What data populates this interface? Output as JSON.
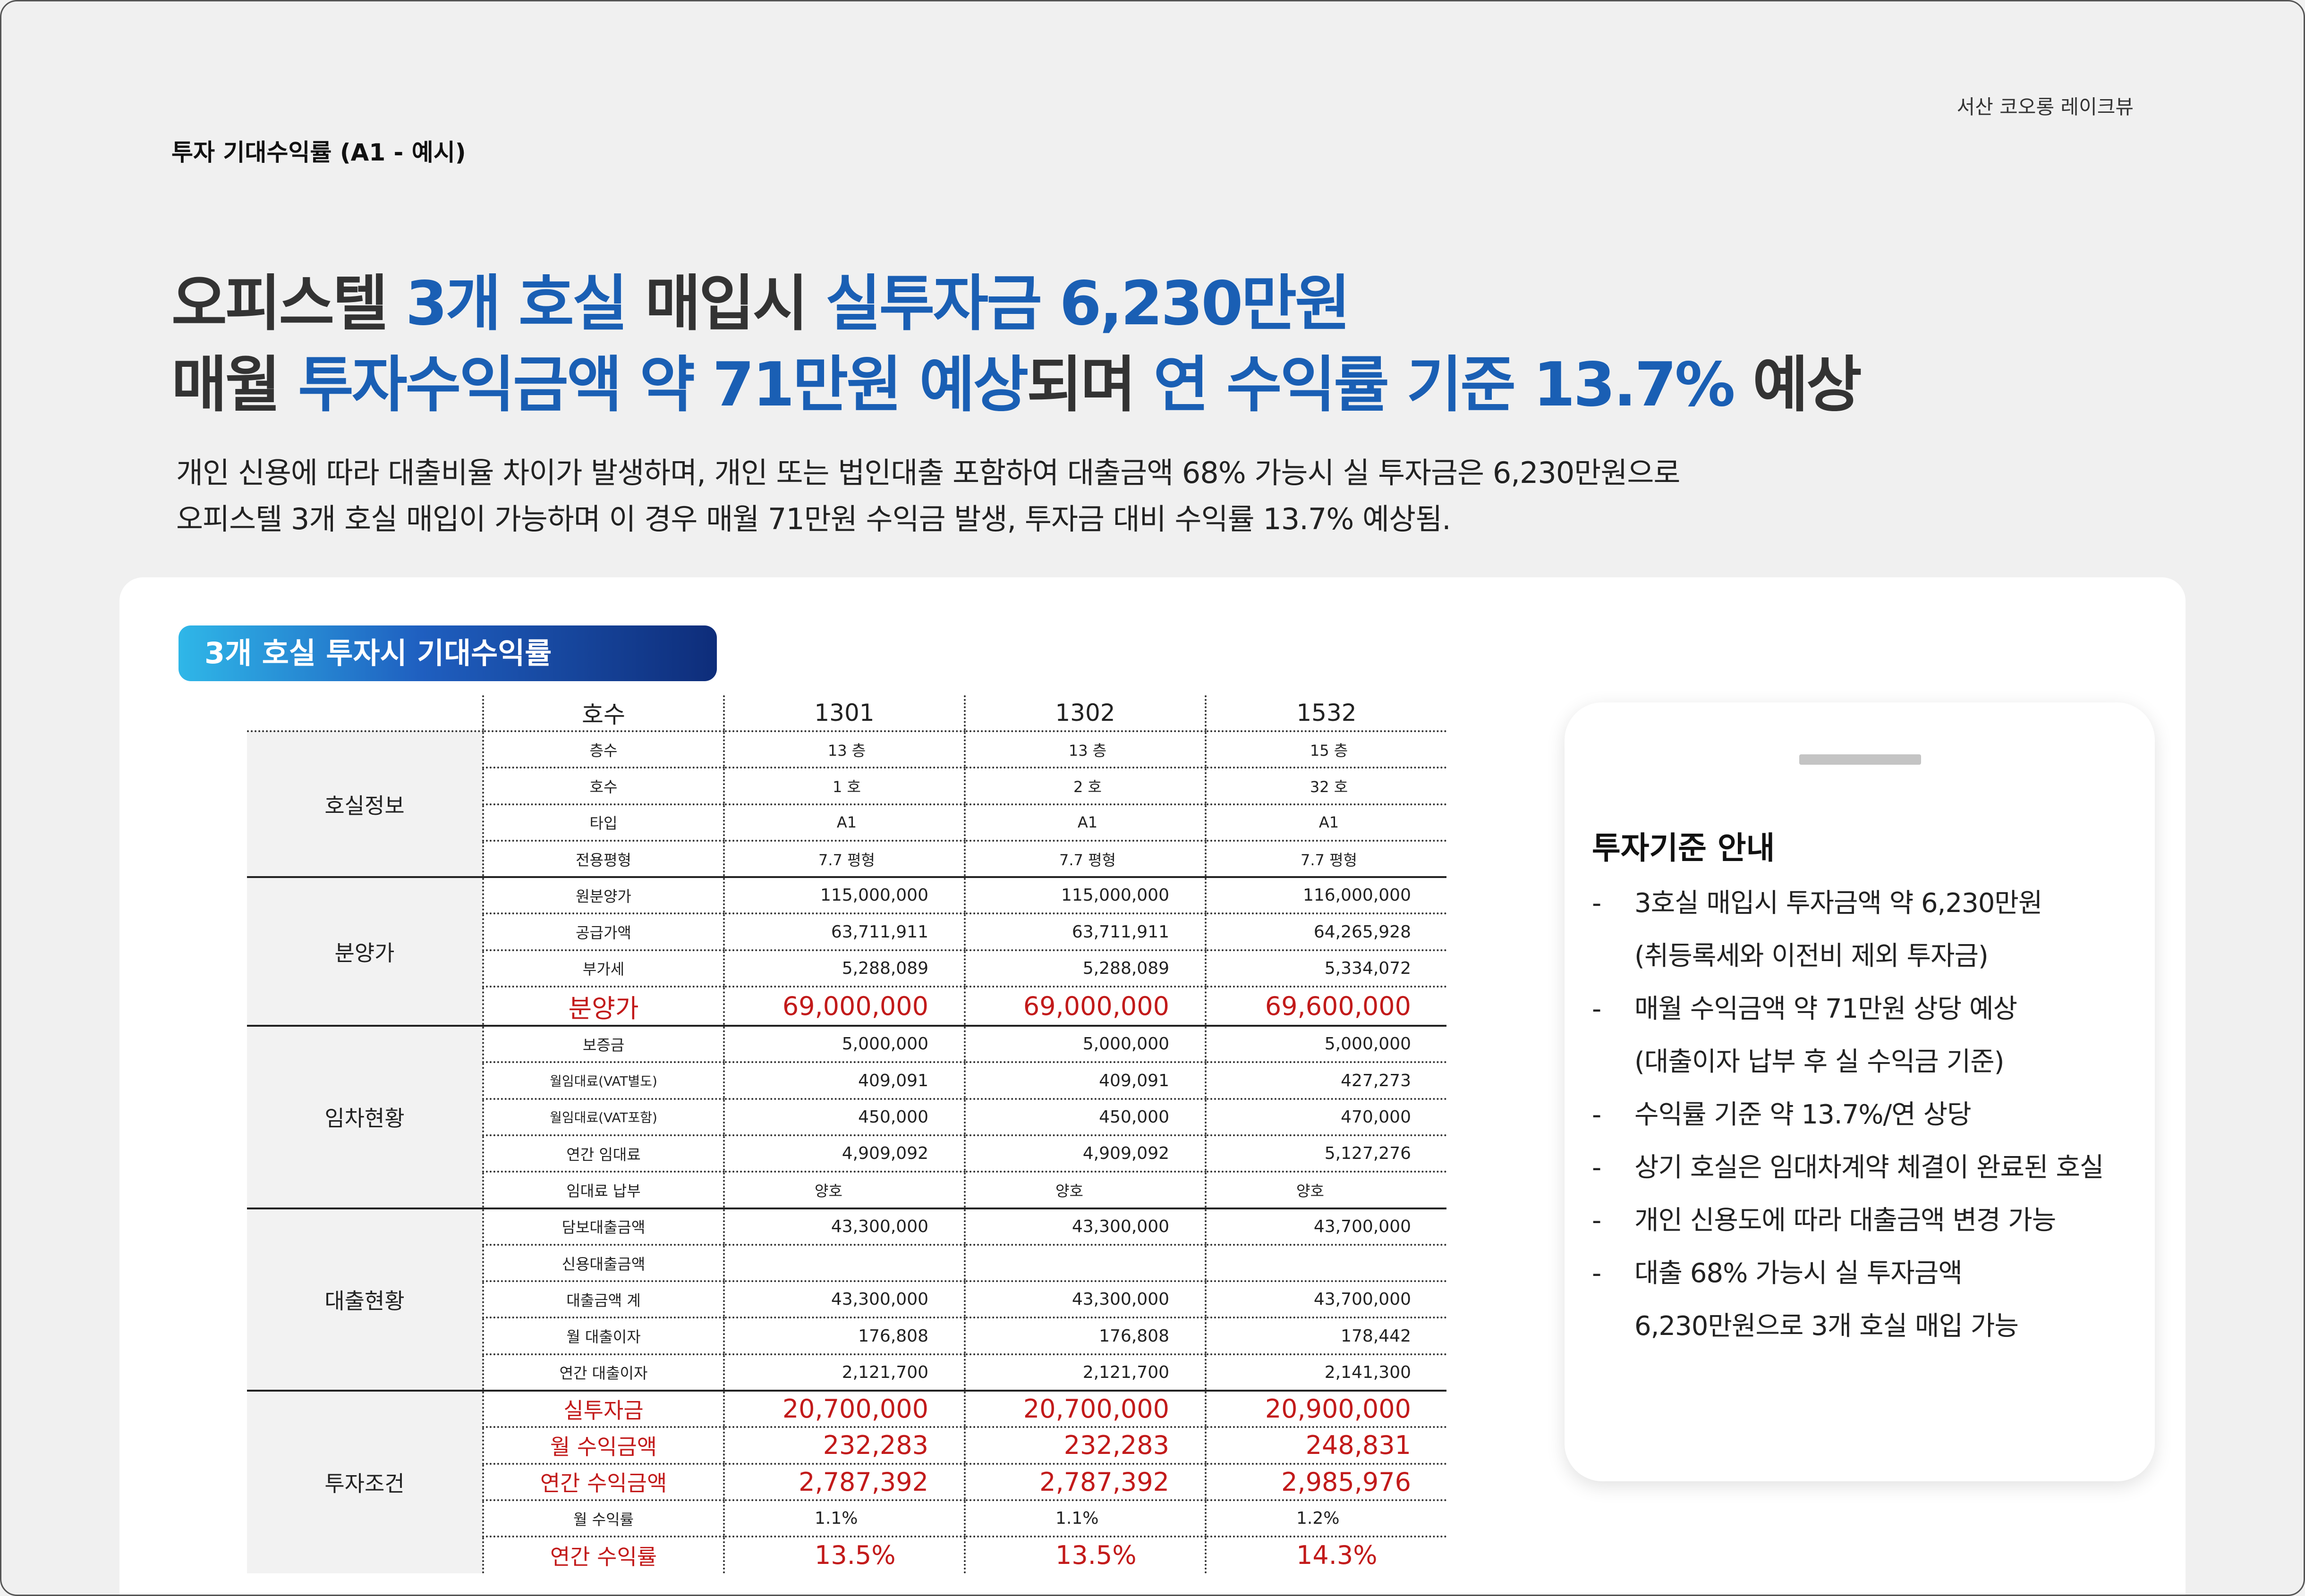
{
  "brand": "서산 코오롱 레이크뷰",
  "section_label": "투자 기대수익률 (A1 - 예시)",
  "headline": {
    "l1_a": "오피스텔 ",
    "l1_b": "3개 호실",
    "l1_c": " 매입시 ",
    "l1_d": "실투자금 6,230만원",
    "l2_a": "매월 ",
    "l2_b": "투자수익금액 약 71만원 예상",
    "l2_c": "되며 ",
    "l2_d": "연 수익률 기준 13.7%",
    "l2_e": " 예상"
  },
  "description": {
    "line1": "개인 신용에 따라 대출비율 차이가 발생하며, 개인 또는 법인대출 포함하여 대출금액 68% 가능시 실 투자금은 6,230만원으로",
    "line2": "오피스텔 3개 호실 매입이 가능하며 이 경우 매월 71만원 수익금 발생, 투자금 대비 수익률 13.7% 예상됨."
  },
  "card_title": "3개 호실 투자시 기대수익률",
  "table": {
    "header": {
      "label": "호수",
      "cols": [
        "1301",
        "1302",
        "1532"
      ]
    },
    "groups": {
      "room_info": "호실정보",
      "sale_price": "분양가",
      "lease": "임차현황",
      "loan": "대출현황",
      "invest": "투자조건"
    },
    "rows": {
      "floor": {
        "label": "층수",
        "vals": [
          "13 층",
          "13 층",
          "15 층"
        ]
      },
      "room": {
        "label": "호수",
        "vals": [
          "1 호",
          "2 호",
          "32 호"
        ]
      },
      "type": {
        "label": "타입",
        "vals": [
          "A1",
          "A1",
          "A1"
        ]
      },
      "area": {
        "label": "전용평형",
        "vals": [
          "7.7 평형",
          "7.7 평형",
          "7.7 평형"
        ]
      },
      "orig_price": {
        "label": "원분양가",
        "vals": [
          "115,000,000",
          "115,000,000",
          "116,000,000"
        ]
      },
      "supply": {
        "label": "공급가액",
        "vals": [
          "63,711,911",
          "63,711,911",
          "64,265,928"
        ]
      },
      "vat": {
        "label": "부가세",
        "vals": [
          "5,288,089",
          "5,288,089",
          "5,334,072"
        ]
      },
      "sale": {
        "label": "분양가",
        "vals": [
          "69,000,000",
          "69,000,000",
          "69,600,000"
        ]
      },
      "deposit": {
        "label": "보증금",
        "vals": [
          "5,000,000",
          "5,000,000",
          "5,000,000"
        ]
      },
      "rent_ex": {
        "label": "월임대료(VAT별도)",
        "vals": [
          "409,091",
          "409,091",
          "427,273"
        ]
      },
      "rent_in": {
        "label": "월임대료(VAT포함)",
        "vals": [
          "450,000",
          "450,000",
          "470,000"
        ]
      },
      "annual_rent": {
        "label": "연간 임대료",
        "vals": [
          "4,909,092",
          "4,909,092",
          "5,127,276"
        ]
      },
      "rent_pay": {
        "label": "임대료 납부",
        "vals": [
          "양호",
          "양호",
          "양호"
        ]
      },
      "secured_loan": {
        "label": "담보대출금액",
        "vals": [
          "43,300,000",
          "43,300,000",
          "43,700,000"
        ]
      },
      "credit_loan": {
        "label": "신용대출금액",
        "vals": [
          "",
          "",
          ""
        ]
      },
      "loan_total": {
        "label": "대출금액 계",
        "vals": [
          "43,300,000",
          "43,300,000",
          "43,700,000"
        ]
      },
      "monthly_interest": {
        "label": "월 대출이자",
        "vals": [
          "176,808",
          "176,808",
          "178,442"
        ]
      },
      "annual_interest": {
        "label": "연간 대출이자",
        "vals": [
          "2,121,700",
          "2,121,700",
          "2,141,300"
        ]
      },
      "real_invest": {
        "label": "실투자금",
        "vals": [
          "20,700,000",
          "20,700,000",
          "20,900,000"
        ]
      },
      "monthly_profit": {
        "label": "월 수익금액",
        "vals": [
          "232,283",
          "232,283",
          "248,831"
        ]
      },
      "annual_profit": {
        "label": "연간 수익금액",
        "vals": [
          "2,787,392",
          "2,787,392",
          "2,985,976"
        ]
      },
      "monthly_rate": {
        "label": "월 수익률",
        "vals": [
          "1.1%",
          "1.1%",
          "1.2%"
        ]
      },
      "annual_rate": {
        "label": "연간 수익률",
        "vals": [
          "13.5%",
          "13.5%",
          "14.3%"
        ]
      }
    }
  },
  "side": {
    "title": "투자기준 안내",
    "dash": "-",
    "items": [
      {
        "text": "3호실 매입시 투자금액 약 6,230만원",
        "sub": "(취등록세와 이전비 제외 투자금)"
      },
      {
        "text": "매월 수익금액 약 71만원 상당 예상",
        "sub": "(대출이자 납부 후 실 수익금 기준)"
      },
      {
        "text": "수익률 기준 약 13.7%/연 상당",
        "sub": ""
      },
      {
        "text": "상기 호실은 임대차계약 체결이 완료된 호실",
        "sub": ""
      },
      {
        "text": "개인 신용도에 따라 대출금액 변경 가능",
        "sub": ""
      },
      {
        "text": "대출 68% 가능시 실 투자금액",
        "sub": "6,230만원으로 3개 호실 매입 가능"
      }
    ]
  },
  "colors": {
    "accent": "#1a5fb4",
    "highlight_red": "#c21a1a"
  }
}
